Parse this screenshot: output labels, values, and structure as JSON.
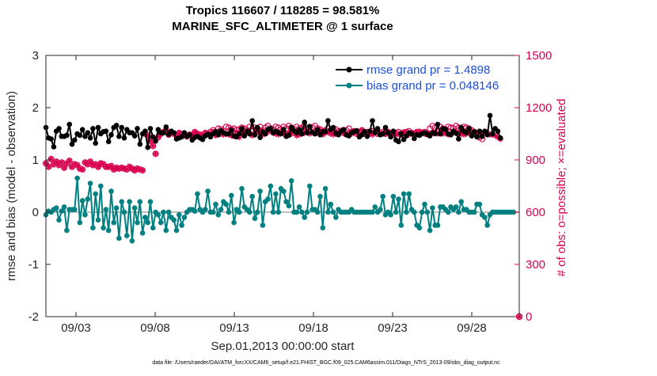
{
  "chart_data": {
    "type": "line",
    "title": "Tropics 116607 / 118285 = 98.581%",
    "subtitle": "MARINE_SFC_ALTIMETER @ 1 surface",
    "xlabel": "Sep.01,2013 00:00:00 start",
    "ylabel": "rmse and bias (model - observation)",
    "ylabel_right": "# of obs: o=possible; ×=evaluated",
    "footnote": "data file: /Users/raeder/DAI/ATM_forcXX/CAM6_setup/f.e21.FHIST_BGC.f09_025.CAM6assim.011/Diags_NTrS_2013-09/obs_diag_output.nc",
    "x_range_days": [
      1.1,
      31.0
    ],
    "x_ticks": [
      {
        "day": 3,
        "label": "09/03"
      },
      {
        "day": 8,
        "label": "09/08"
      },
      {
        "day": 13,
        "label": "09/13"
      },
      {
        "day": 18,
        "label": "09/18"
      },
      {
        "day": 23,
        "label": "09/23"
      },
      {
        "day": 28,
        "label": "09/28"
      }
    ],
    "ylim": [
      -2,
      3
    ],
    "y_ticks": [
      "-2",
      "-1",
      "0",
      "1",
      "2",
      "3"
    ],
    "ylim_right": [
      0,
      1500
    ],
    "y_ticks_right": [
      "0",
      "300",
      "600",
      "900",
      "1200",
      "1500"
    ],
    "legend": {
      "location": "top-right",
      "entries": [
        {
          "label": "rmse grand pr = 1.4898",
          "series": "rmse"
        },
        {
          "label": "bias grand pr = 0.048146",
          "series": "bias"
        }
      ]
    },
    "series": [
      {
        "name": "rmse",
        "axis": "left",
        "marker": "dot",
        "color": "#000000",
        "values": [
          1.62,
          1.42,
          1.4,
          1.25,
          1.55,
          1.6,
          1.45,
          1.45,
          1.47,
          1.68,
          1.3,
          1.38,
          1.5,
          1.47,
          1.58,
          1.45,
          1.52,
          1.42,
          1.6,
          1.32,
          1.62,
          1.5,
          1.54,
          1.55,
          1.35,
          1.48,
          1.62,
          1.66,
          1.45,
          1.62,
          1.42,
          1.58,
          1.52,
          1.52,
          1.46,
          1.6,
          1.3,
          1.5,
          1.55,
          1.24,
          1.6,
          1.44,
          1.36,
          1.58,
          1.52,
          1.52,
          1.63,
          1.49,
          1.55,
          1.52,
          1.4,
          1.42,
          1.44,
          1.52,
          1.45,
          1.48,
          1.38,
          1.43,
          1.45,
          1.42,
          1.39,
          1.46,
          1.49,
          1.44,
          1.5,
          1.54,
          1.48,
          1.56,
          1.52,
          1.5,
          1.5,
          1.57,
          1.46,
          1.44,
          1.5,
          1.6,
          1.46,
          1.55,
          1.5,
          1.75,
          1.48,
          1.62,
          1.43,
          1.54,
          1.5,
          1.58,
          1.6,
          1.52,
          1.55,
          1.52,
          1.5,
          1.58,
          1.45,
          1.47,
          1.62,
          1.56,
          1.52,
          1.58,
          1.5,
          1.72,
          1.52,
          1.64,
          1.53,
          1.5,
          1.58,
          1.48,
          1.54,
          1.54,
          1.75,
          1.58,
          1.62,
          1.51,
          1.48,
          1.55,
          1.58,
          1.48,
          1.46,
          1.52,
          1.54,
          1.56,
          1.44,
          1.48,
          1.54,
          1.45,
          1.55,
          1.75,
          1.52,
          1.6,
          1.48,
          1.5,
          1.62,
          1.52,
          1.44,
          1.55,
          1.38,
          1.35,
          1.5,
          1.39,
          1.46,
          1.52,
          1.5,
          1.41,
          1.48,
          1.47,
          1.5,
          1.52,
          1.49,
          1.46,
          1.52,
          1.5,
          1.68,
          1.5,
          1.6,
          1.58,
          1.5,
          1.48,
          1.55,
          1.51,
          1.4,
          1.62,
          1.55,
          1.52,
          1.6,
          1.46,
          1.54,
          1.44,
          1.55,
          1.45,
          1.55,
          1.48,
          1.85,
          1.5,
          1.6,
          1.55,
          1.42
        ]
      },
      {
        "name": "bias",
        "axis": "left",
        "marker": "dot",
        "color": "#008080",
        "values": [
          -0.05,
          0.02,
          0.0,
          0.05,
          0.08,
          -0.15,
          0.02,
          0.1,
          -0.35,
          0.05,
          0.05,
          0.05,
          0.65,
          -0.2,
          0.22,
          -0.05,
          0.25,
          0.55,
          -0.3,
          0.35,
          -0.15,
          0.5,
          -0.3,
          0.05,
          -0.35,
          0.4,
          -0.2,
          0.08,
          -0.5,
          0.2,
          0.0,
          -0.45,
          0.2,
          -0.55,
          0.08,
          -0.2,
          0.2,
          -0.4,
          -0.1,
          -0.2,
          0.2,
          -0.3,
          0.0,
          -0.05,
          -0.2,
          0.0,
          -0.35,
          0.0,
          -0.1,
          -0.15,
          -0.35,
          -0.05,
          -0.25,
          -0.1,
          0.0,
          0.05,
          0.05,
          0.02,
          0.35,
          0.05,
          0.0,
          0.05,
          0.4,
          0.0,
          0.0,
          0.15,
          -0.05,
          0.05,
          0.2,
          0.15,
          0.0,
          0.32,
          -0.2,
          0.05,
          0.0,
          0.45,
          0.1,
          0.05,
          0.0,
          0.3,
          -0.12,
          0.0,
          0.4,
          -0.25,
          0.2,
          0.25,
          0.5,
          0.0,
          0.35,
          0.0,
          0.45,
          0.4,
          0.2,
          0.12,
          0.6,
          0.0,
          0.0,
          0.1,
          0.0,
          -0.1,
          0.0,
          0.5,
          0.05,
          0.05,
          0.0,
          0.3,
          -0.3,
          0.45,
          0.0,
          0.15,
          0.0,
          -0.1,
          0.05,
          0.0,
          0.0,
          0.0,
          0.0,
          0.05,
          0.0,
          0.0,
          0.0,
          0.0,
          0.0,
          0.0,
          0.0,
          0.0,
          0.1,
          0.0,
          0.05,
          0.3,
          -0.05,
          0.0,
          -0.05,
          0.3,
          0.0,
          0.25,
          -0.25,
          0.35,
          0.0,
          0.35,
          0.05,
          0.0,
          -0.25,
          -0.3,
          0.0,
          0.15,
          0.0,
          -0.35,
          0.08,
          -0.25,
          -0.25,
          0.1,
          0.1,
          0.05,
          0.0,
          0.1,
          0.05,
          0.1,
          0.0,
          0.2,
          0.05,
          0.05,
          0.0,
          0.0,
          0.0,
          0.15,
          0.15,
          -0.05,
          -0.1,
          -0.25,
          -0.05,
          0.0,
          0.0,
          0.0,
          0.0,
          0.0,
          0.0,
          0.0,
          0.0,
          0.0
        ]
      },
      {
        "name": "obs evaluated",
        "axis": "right",
        "marker": "asterisk",
        "color": "#d9004f",
        "values": [
          880,
          860,
          905,
          875,
          890,
          870,
          885,
          855,
          880,
          895,
          860,
          875,
          870,
          850,
          845,
          885,
          875,
          890,
          870,
          875,
          860,
          880,
          875,
          860,
          860,
          865,
          845,
          855,
          850,
          855,
          850,
          845,
          860,
          850,
          840,
          850,
          845,
          840,
          1050,
          1040,
          1010,
          980,
          935,
          1030,
          1050,
          1060,
          1070,
          1045,
          1060,
          1050,
          1040,
          1055,
          1045,
          1050,
          1035,
          1045,
          1040,
          1060,
          1050,
          1045,
          1040,
          1055,
          1050,
          1045,
          1060,
          1040,
          1050,
          1050,
          1045,
          1050,
          1045,
          1040,
          1035,
          1060,
          1030,
          1050,
          1045,
          1060,
          1050,
          1040,
          1050,
          1065,
          1055,
          1045,
          1050,
          1060,
          1070,
          1055,
          1050,
          1045,
          1060,
          1050,
          1050,
          1055,
          1050,
          1060,
          1040,
          1045,
          1050,
          1055,
          1060,
          1050,
          1060,
          1050,
          1060,
          1050,
          1045,
          1055,
          1060,
          1050,
          1045,
          1050,
          1060,
          1070,
          1055,
          1045,
          1050,
          1050,
          1060,
          1055,
          1045,
          1070,
          1060,
          1050,
          1050,
          1045,
          1060,
          1055,
          1050,
          1050,
          1050,
          1060,
          1050,
          1055,
          1045,
          1050,
          1045,
          1060,
          1050,
          1045,
          1055,
          1050,
          1060,
          1065,
          1055,
          1050,
          1045,
          1050,
          1055,
          1060,
          1050,
          1050,
          1050,
          1055,
          1045,
          1050,
          1060,
          1055,
          1050,
          1050,
          1045,
          1050,
          1055,
          1060,
          1050,
          1055,
          1050,
          1050,
          1060,
          1055,
          1045,
          1045,
          1040,
          1030,
          1020
        ]
      },
      {
        "name": "obs possible",
        "axis": "right",
        "marker": "circle",
        "color": "#d9004f",
        "values": [
          880,
          860,
          905,
          875,
          890,
          870,
          885,
          855,
          880,
          895,
          860,
          875,
          870,
          850,
          845,
          885,
          875,
          890,
          870,
          875,
          860,
          880,
          875,
          860,
          860,
          865,
          845,
          855,
          850,
          855,
          850,
          845,
          860,
          850,
          840,
          850,
          845,
          840,
          1050,
          1040,
          1010,
          980,
          935,
          1030,
          1050,
          1060,
          1070,
          1045,
          1060,
          1050,
          1040,
          1055,
          1045,
          1050,
          1035,
          1045,
          1040,
          1060,
          1050,
          1045,
          1040,
          1055,
          1050,
          1060,
          1070,
          1060,
          1080,
          1075,
          1065,
          1090,
          1085,
          1075,
          1080,
          1070,
          1075,
          1085,
          1080,
          1070,
          1090,
          1075,
          1085,
          1080,
          1090,
          1070,
          1085,
          1095,
          1080,
          1075,
          1090,
          1085,
          1075,
          1090,
          1080,
          1095,
          1085,
          1075,
          1090,
          1080,
          1085,
          1095,
          1080,
          1070,
          1085,
          1095,
          1080,
          1075,
          1065,
          1070,
          1080,
          1060,
          1070,
          1075,
          1065,
          1060,
          1055,
          1070,
          1080,
          1060,
          1065,
          1050,
          1060,
          1070,
          1050,
          1060,
          1055,
          1065,
          1060,
          1050,
          1055,
          1060,
          1050,
          1060,
          1050,
          1045,
          1055,
          1060,
          1050,
          1055,
          1060,
          1065,
          1055,
          1050,
          1060,
          1050,
          1055,
          1060,
          1050,
          1080,
          1095,
          1085,
          1070,
          1090,
          1080,
          1075,
          1090,
          1085,
          1080,
          1095,
          1085,
          1075,
          1090,
          1085,
          1080,
          1070,
          1060,
          1050,
          1030,
          1020
        ]
      }
    ],
    "x_start_day": 1.1,
    "x_step_days": 0.165,
    "isolated_possible_points": [
      {
        "day": 31.0,
        "value": 0
      }
    ]
  }
}
